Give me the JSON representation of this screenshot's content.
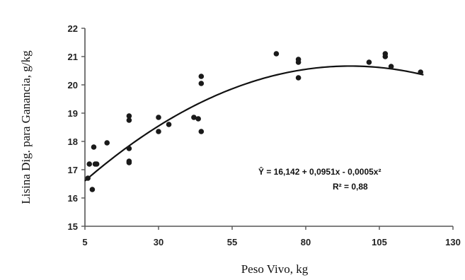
{
  "chart_data": {
    "type": "scatter",
    "title": "",
    "xlabel": "Peso Vivo, kg",
    "ylabel": "Lisina Dig. para Ganancia, g/kg",
    "xlim": [
      5,
      130
    ],
    "ylim": [
      15,
      22
    ],
    "xticks": [
      5,
      30,
      55,
      80,
      105,
      130
    ],
    "yticks": [
      15,
      16,
      17,
      18,
      19,
      20,
      21,
      22
    ],
    "grid": false,
    "legend": "none",
    "points": [
      {
        "x": 6,
        "y": 16.7
      },
      {
        "x": 6.5,
        "y": 17.2
      },
      {
        "x": 7.5,
        "y": 16.3
      },
      {
        "x": 8,
        "y": 17.8
      },
      {
        "x": 8.5,
        "y": 17.2
      },
      {
        "x": 9,
        "y": 17.2
      },
      {
        "x": 12.5,
        "y": 17.95
      },
      {
        "x": 20,
        "y": 18.9
      },
      {
        "x": 20,
        "y": 18.75
      },
      {
        "x": 20,
        "y": 17.75
      },
      {
        "x": 20,
        "y": 17.3
      },
      {
        "x": 20,
        "y": 17.25
      },
      {
        "x": 30,
        "y": 18.85
      },
      {
        "x": 30,
        "y": 18.35
      },
      {
        "x": 33.5,
        "y": 18.6
      },
      {
        "x": 42,
        "y": 18.85
      },
      {
        "x": 43.5,
        "y": 18.8
      },
      {
        "x": 44.5,
        "y": 20.3
      },
      {
        "x": 44.5,
        "y": 20.05
      },
      {
        "x": 44.5,
        "y": 18.35
      },
      {
        "x": 70,
        "y": 21.1
      },
      {
        "x": 77.5,
        "y": 20.9
      },
      {
        "x": 77.5,
        "y": 20.8
      },
      {
        "x": 77.5,
        "y": 20.25
      },
      {
        "x": 101.5,
        "y": 20.8
      },
      {
        "x": 107,
        "y": 21.1
      },
      {
        "x": 107,
        "y": 21.0
      },
      {
        "x": 109,
        "y": 20.65
      },
      {
        "x": 119,
        "y": 20.45
      }
    ],
    "fit": {
      "model": "quadratic",
      "intercept": 16.142,
      "linear": 0.0951,
      "quadratic": -0.0005,
      "x_range": [
        5,
        120
      ],
      "equation_label": "Ŷ = 16,142 + 0,0951x - 0,0005x²",
      "r2_label": "R² = 0,88"
    }
  },
  "colors": {
    "points": "#1a1a1a",
    "curve": "#111111",
    "axis": "#555555"
  }
}
